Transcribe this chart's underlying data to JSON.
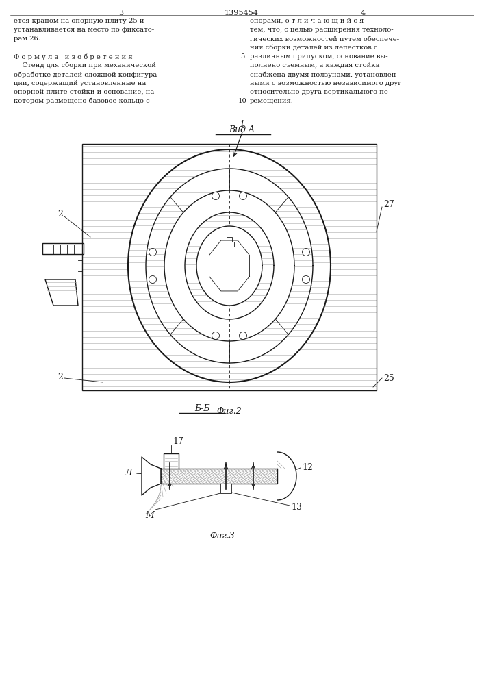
{
  "page_width": 7.07,
  "page_height": 10.0,
  "bg_color": "#ffffff",
  "line_color": "#1a1a1a",
  "header_left_num": "3",
  "header_center_num": "1395454",
  "header_right_num": "4",
  "text_left_col": [
    "ется краном на опорную плиту 25 и",
    "устанавливается на место по фиксато-",
    "рам 26.",
    "",
    "Ф о р м у л а   и з о б р е т е н и я",
    "    Стенд для сборки при механической",
    "обработке деталей сложной конфигура-",
    "ции, содержащий установленные на",
    "опорной плите стойки и основание, на",
    "котором размещено базовое кольцо с"
  ],
  "text_right_col": [
    "опорами, о т л и ч а ю щ и й с я",
    "тем, что, с целью расширения техноло-",
    "гических возможностей путем обеспече-",
    "ния сборки деталей из лепестков с",
    "различным припуском, основание вы-",
    "полнено съемным, а каждая стойка",
    "снабжена двумя ползунами, установлен-",
    "ными с возможностью независимого друг",
    "относительно друга вертикального пе-",
    "ремещения."
  ],
  "fig2_label": "Фиг.2",
  "fig3_label": "Фиг.3",
  "vid_a_label": "Вид A",
  "bb_label": "Б-Б",
  "label_1": "1",
  "label_2": "2",
  "label_25": "25",
  "label_27": "27",
  "label_17": "17",
  "label_l": "Л",
  "label_m": "М",
  "label_12": "12",
  "label_13": "13"
}
